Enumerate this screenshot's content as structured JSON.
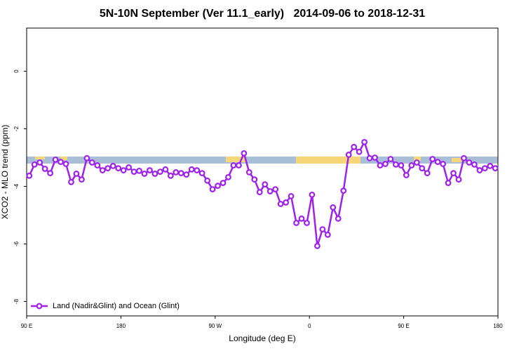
{
  "chart_data": {
    "type": "line",
    "title": "5N-10N September (Ver 11.1_early)   2014-09-06 to 2018-12-31",
    "xlabel": "Longitude (deg E)",
    "ylabel": "XCO2 - MLO trend (ppm)",
    "xlim": [
      90,
      540
    ],
    "ylim": [
      -8.5,
      1.5
    ],
    "xticks": [
      {
        "value": 90,
        "label": "90 E"
      },
      180,
      {
        "value": 270,
        "label": "90 W"
      },
      {
        "value": 360,
        "label": "0"
      },
      {
        "value": 450,
        "label": "90 E"
      },
      {
        "value": 540,
        "label": "180"
      }
    ],
    "yticks": [
      0,
      -2,
      -4,
      -6,
      -8
    ],
    "legend": "bottom-left",
    "x": [
      92.5,
      97.5,
      102.5,
      107.5,
      112.5,
      117.5,
      122.5,
      127.5,
      132.5,
      137.5,
      142.5,
      147.5,
      152.5,
      157.5,
      162.5,
      167.5,
      172.5,
      177.5,
      182.5,
      187.5,
      192.5,
      197.5,
      202.5,
      207.5,
      212.5,
      217.5,
      222.5,
      227.5,
      232.5,
      237.5,
      242.5,
      247.5,
      252.5,
      257.5,
      262.5,
      267.5,
      272.5,
      277.5,
      282.5,
      287.5,
      292.5,
      297.5,
      302.5,
      307.5,
      312.5,
      317.5,
      322.5,
      327.5,
      332.5,
      337.5,
      342.5,
      347.5,
      352.5,
      357.5,
      362.5,
      367.5,
      372.5,
      377.5,
      382.5,
      387.5,
      392.5,
      397.5,
      402.5,
      407.5,
      412.5,
      417.5,
      422.5,
      427.5,
      432.5,
      437.5,
      442.5,
      447.5,
      452.5,
      457.5,
      462.5,
      467.5,
      472.5,
      477.5,
      482.5,
      487.5,
      492.5,
      497.5,
      502.5,
      507.5,
      512.5,
      517.5,
      522.5,
      527.5,
      532.5,
      537.5
    ],
    "series": [
      {
        "name": "Land (Nadir&Glint) and Ocean (Glint)",
        "color": "#a020f0",
        "values": [
          -3.63,
          -3.24,
          -3.17,
          -3.39,
          -3.54,
          -3.07,
          -3.15,
          -3.22,
          -3.85,
          -3.56,
          -3.76,
          -3.02,
          -3.17,
          -3.27,
          -3.44,
          -3.37,
          -3.29,
          -3.37,
          -3.44,
          -3.34,
          -3.49,
          -3.46,
          -3.56,
          -3.44,
          -3.56,
          -3.49,
          -3.41,
          -3.63,
          -3.51,
          -3.54,
          -3.59,
          -3.41,
          -3.44,
          -3.54,
          -3.8,
          -4.1,
          -3.98,
          -3.88,
          -3.68,
          -3.27,
          -3.27,
          -2.85,
          -3.51,
          -3.76,
          -4.2,
          -3.93,
          -4.17,
          -4.1,
          -4.61,
          -4.56,
          -4.34,
          -5.27,
          -5.12,
          -5.27,
          -4.29,
          -6.07,
          -5.49,
          -5.68,
          -4.73,
          -5.12,
          -4.15,
          -2.9,
          -2.63,
          -2.8,
          -2.46,
          -3.02,
          -3.0,
          -3.27,
          -3.22,
          -3.05,
          -3.24,
          -3.27,
          -3.61,
          -3.27,
          -3.17,
          -3.37,
          -3.54,
          -3.05,
          -3.15,
          -3.22,
          -3.88,
          -3.54,
          -3.76,
          -3.02,
          -3.17,
          -3.24,
          -3.44,
          -3.37,
          -3.29,
          -3.37
        ]
      }
    ]
  }
}
